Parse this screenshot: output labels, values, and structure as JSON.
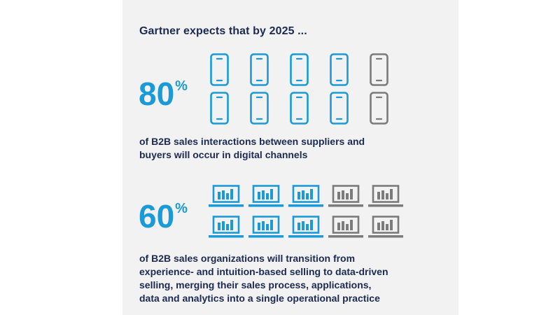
{
  "heading": "Gartner expects that by 2025 ...",
  "colors": {
    "accent": "#1a9ad6",
    "neutral": "#7b7b7b",
    "text": "#1b2a52",
    "card_bg": "#f2f2f2"
  },
  "chart_data": [
    {
      "type": "pictogram",
      "icon": "smartphone-icon",
      "value": 80,
      "value_label": "80",
      "unit": "%",
      "total_icons": 10,
      "highlighted_icons": 8,
      "rows": 2,
      "columns": 5,
      "description": "of B2B sales interactions between suppliers and buyers will occur in digital channels",
      "description_lines": [
        "of B2B sales interactions between suppliers and",
        "buyers will occur in digital channels"
      ]
    },
    {
      "type": "pictogram",
      "icon": "laptop-chart-icon",
      "value": 60,
      "value_label": "60",
      "unit": "%",
      "total_icons": 10,
      "highlighted_icons": 6,
      "rows": 2,
      "columns": 5,
      "description": "of B2B sales organizations will transition from experience- and intuition-based selling to data-driven selling, merging their sales process, applications, data and analytics into a single operational practice",
      "description_lines": [
        "of B2B sales organizations will transition from",
        "experience- and intuition-based selling to data-driven",
        "selling, merging their sales process, applications,",
        "data and analytics into a single operational practice"
      ]
    }
  ]
}
